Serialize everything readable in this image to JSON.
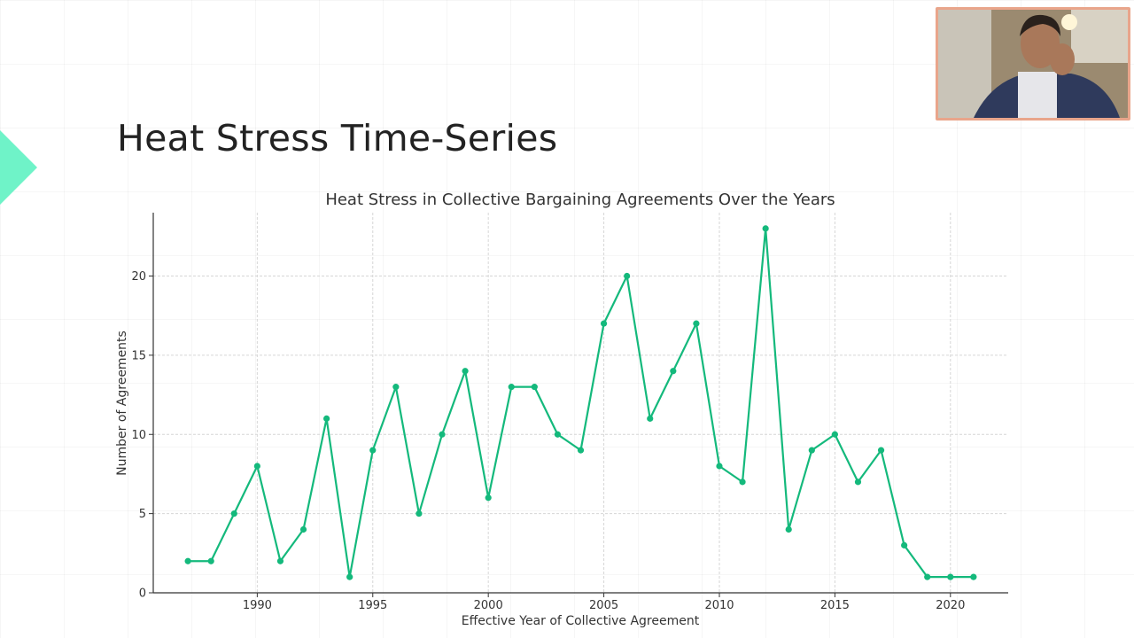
{
  "slide": {
    "title": "Heat Stress Time-Series",
    "accent_color": "#6ff3c8"
  },
  "webcam": {
    "description_icon": "person-icon",
    "frame_color": "#e9a58b"
  },
  "chart_data": {
    "type": "line",
    "title": "Heat Stress in Collective Bargaining Agreements Over the Years",
    "xlabel": "Effective Year of Collective Agreement",
    "ylabel": "Number of Agreements",
    "xlim": [
      1985.5,
      2022.5
    ],
    "ylim": [
      0,
      24
    ],
    "xticks": [
      1990,
      1995,
      2000,
      2005,
      2010,
      2015,
      2020
    ],
    "yticks": [
      0,
      5,
      10,
      15,
      20
    ],
    "grid": true,
    "line_color": "#14b97c",
    "series": [
      {
        "x": [
          1987,
          1988,
          1989,
          1990,
          1991,
          1992,
          1993,
          1994,
          1995,
          1996,
          1997,
          1998,
          1999,
          2000,
          2001,
          2002,
          2003,
          2004,
          2005,
          2006,
          2007,
          2008,
          2009,
          2010,
          2011,
          2012,
          2013,
          2014,
          2015,
          2016,
          2017,
          2018,
          2019,
          2020,
          2021
        ],
        "y": [
          2,
          2,
          5,
          8,
          2,
          4,
          11,
          1,
          9,
          13,
          5,
          10,
          14,
          6,
          13,
          13,
          10,
          9,
          17,
          20,
          11,
          14,
          17,
          8,
          7,
          23,
          4,
          9,
          10,
          7,
          9,
          3,
          1,
          1,
          1
        ]
      }
    ]
  }
}
